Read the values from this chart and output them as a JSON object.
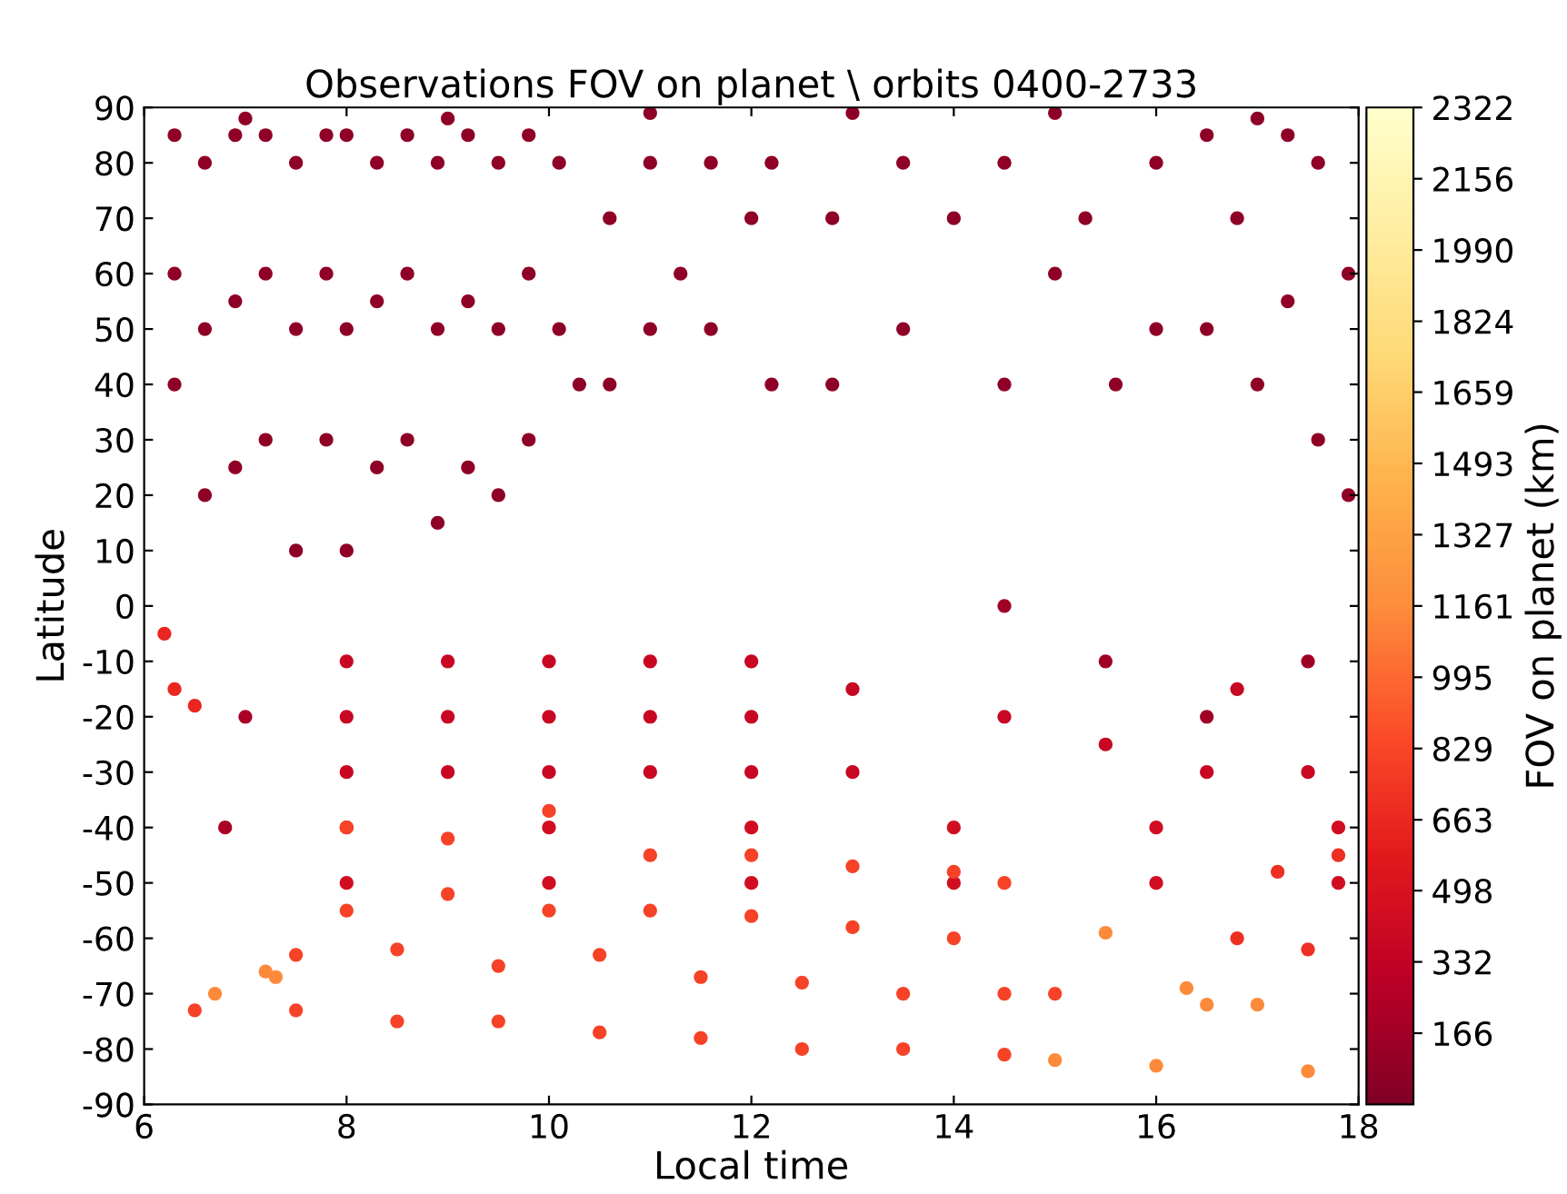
{
  "chart_data": {
    "type": "scatter",
    "title": "Observations FOV on planet \\ orbits 0400-2733",
    "xlabel": "Local time",
    "ylabel": "Latitude",
    "clabel": "FOV on planet (km)",
    "xlim": [
      6,
      18
    ],
    "xticks": [
      6,
      8,
      10,
      12,
      14,
      16,
      18
    ],
    "ylim": [
      -90,
      90
    ],
    "yticks": [
      -90,
      -80,
      -70,
      -60,
      -50,
      -40,
      -30,
      -20,
      -10,
      0,
      10,
      20,
      30,
      40,
      50,
      60,
      70,
      80,
      90
    ],
    "clim": [
      0,
      2322
    ],
    "cticks": [
      166,
      332,
      498,
      663,
      829,
      995,
      1161,
      1327,
      1493,
      1659,
      1824,
      1990,
      2156,
      2322
    ],
    "grid": false,
    "marker": "circle",
    "x": [
      6.3,
      6.3,
      6.3,
      6.6,
      6.6,
      6.6,
      6.9,
      6.9,
      6.9,
      7.2,
      7.2,
      7.2,
      7.5,
      7.5,
      7.5,
      7.8,
      7.8,
      7.8,
      8.0,
      8.0,
      8.0,
      8.3,
      8.3,
      8.3,
      8.6,
      8.6,
      8.6,
      8.9,
      8.9,
      8.9,
      9.2,
      9.2,
      9.2,
      9.5,
      9.5,
      9.5,
      9.8,
      9.8,
      9.8,
      10.1,
      10.1,
      10.3,
      10.6,
      10.6,
      11.0,
      11.0,
      11.3,
      11.6,
      11.6,
      12.0,
      12.2,
      12.2,
      12.8,
      12.8,
      13.5,
      13.5,
      14.0,
      14.5,
      14.5,
      15.0,
      15.3,
      15.6,
      16.0,
      16.0,
      16.5,
      16.5,
      16.8,
      17.0,
      17.3,
      17.3,
      17.6,
      17.6,
      17.9,
      17.9,
      7,
      9,
      11,
      13,
      15,
      17,
      14.5,
      15.5,
      16.5,
      17.5,
      7,
      6.8,
      8,
      8,
      8,
      9,
      9,
      9,
      10,
      10,
      10,
      11,
      11,
      11,
      12,
      12,
      12,
      13,
      13,
      14.5,
      15.5,
      16.5,
      17.5,
      16.8,
      8,
      10,
      12,
      14,
      16,
      17.8,
      8,
      10,
      12,
      14,
      16,
      17.8,
      8,
      9,
      10,
      11,
      12,
      13,
      14,
      14.5,
      8,
      9,
      10,
      11,
      12,
      13,
      14,
      7.5,
      8.5,
      9.5,
      10.5,
      11.5,
      12.5,
      13.5,
      14.5,
      15,
      6.5,
      7.5,
      8.5,
      9.5,
      10.5,
      11.5,
      12.5,
      13.5,
      14.5,
      6.3,
      6.2,
      6.5,
      16.8,
      17.5,
      17.8,
      17.2,
      6.7,
      7.3,
      15.5,
      16.3,
      16.5,
      17,
      15,
      16,
      17.5,
      7.2
    ],
    "values": [
      85,
      60,
      40,
      80,
      50,
      20,
      85,
      55,
      25,
      85,
      60,
      30,
      80,
      50,
      10,
      85,
      60,
      30,
      85,
      50,
      10,
      80,
      55,
      25,
      85,
      60,
      30,
      80,
      50,
      15,
      85,
      55,
      25,
      80,
      50,
      20,
      85,
      60,
      30,
      80,
      50,
      40,
      70,
      40,
      80,
      50,
      60,
      80,
      50,
      70,
      80,
      40,
      70,
      40,
      80,
      50,
      70,
      80,
      40,
      60,
      70,
      40,
      80,
      50,
      85,
      50,
      70,
      40,
      85,
      55,
      80,
      30,
      60,
      20,
      88,
      88,
      89,
      89,
      89,
      88,
      0,
      -10,
      -20,
      -10,
      -20,
      -40,
      -10,
      -20,
      -30,
      -10,
      -20,
      -30,
      -10,
      -20,
      -30,
      -10,
      -20,
      -30,
      -10,
      -20,
      -30,
      -15,
      -30,
      -20,
      -25,
      -30,
      -30,
      -15,
      -40,
      -40,
      -40,
      -40,
      -40,
      -40,
      -50,
      -50,
      -50,
      -50,
      -50,
      -50,
      -40,
      -42,
      -37,
      -45,
      -45,
      -47,
      -48,
      -50,
      -55,
      -52,
      -55,
      -55,
      -56,
      -58,
      -60,
      -63,
      -62,
      -65,
      -63,
      -67,
      -68,
      -70,
      -70,
      -70,
      -73,
      -73,
      -75,
      -75,
      -77,
      -78,
      -80,
      -80,
      -81,
      -15,
      -5,
      -18,
      -60,
      -62,
      -45,
      -48,
      -70,
      -67,
      -59,
      -69,
      -72,
      -72,
      -82,
      -83,
      -84,
      -66
    ],
    "cvalues": [
      80,
      80,
      80,
      80,
      80,
      80,
      80,
      80,
      80,
      80,
      80,
      80,
      80,
      80,
      80,
      80,
      80,
      80,
      80,
      80,
      80,
      80,
      80,
      80,
      80,
      80,
      80,
      80,
      80,
      80,
      80,
      80,
      80,
      80,
      80,
      80,
      80,
      80,
      80,
      80,
      80,
      80,
      80,
      80,
      80,
      80,
      80,
      80,
      80,
      80,
      80,
      80,
      80,
      80,
      80,
      80,
      80,
      80,
      80,
      80,
      80,
      80,
      80,
      80,
      80,
      80,
      80,
      80,
      80,
      80,
      80,
      80,
      80,
      80,
      80,
      80,
      80,
      80,
      80,
      80,
      150,
      150,
      150,
      150,
      200,
      200,
      380,
      380,
      380,
      380,
      380,
      380,
      380,
      380,
      380,
      380,
      380,
      380,
      380,
      380,
      380,
      380,
      380,
      380,
      380,
      380,
      380,
      380,
      450,
      450,
      450,
      450,
      450,
      450,
      450,
      450,
      450,
      450,
      450,
      450,
      800,
      800,
      800,
      800,
      800,
      800,
      800,
      800,
      800,
      800,
      800,
      800,
      800,
      800,
      800,
      800,
      800,
      800,
      800,
      800,
      800,
      800,
      800,
      800,
      800,
      800,
      800,
      800,
      800,
      800,
      800,
      800,
      800,
      650,
      650,
      650,
      700,
      700,
      700,
      700,
      1150,
      1150,
      1150,
      1150,
      1150,
      1150,
      1150,
      1150,
      1150,
      1150
    ]
  }
}
